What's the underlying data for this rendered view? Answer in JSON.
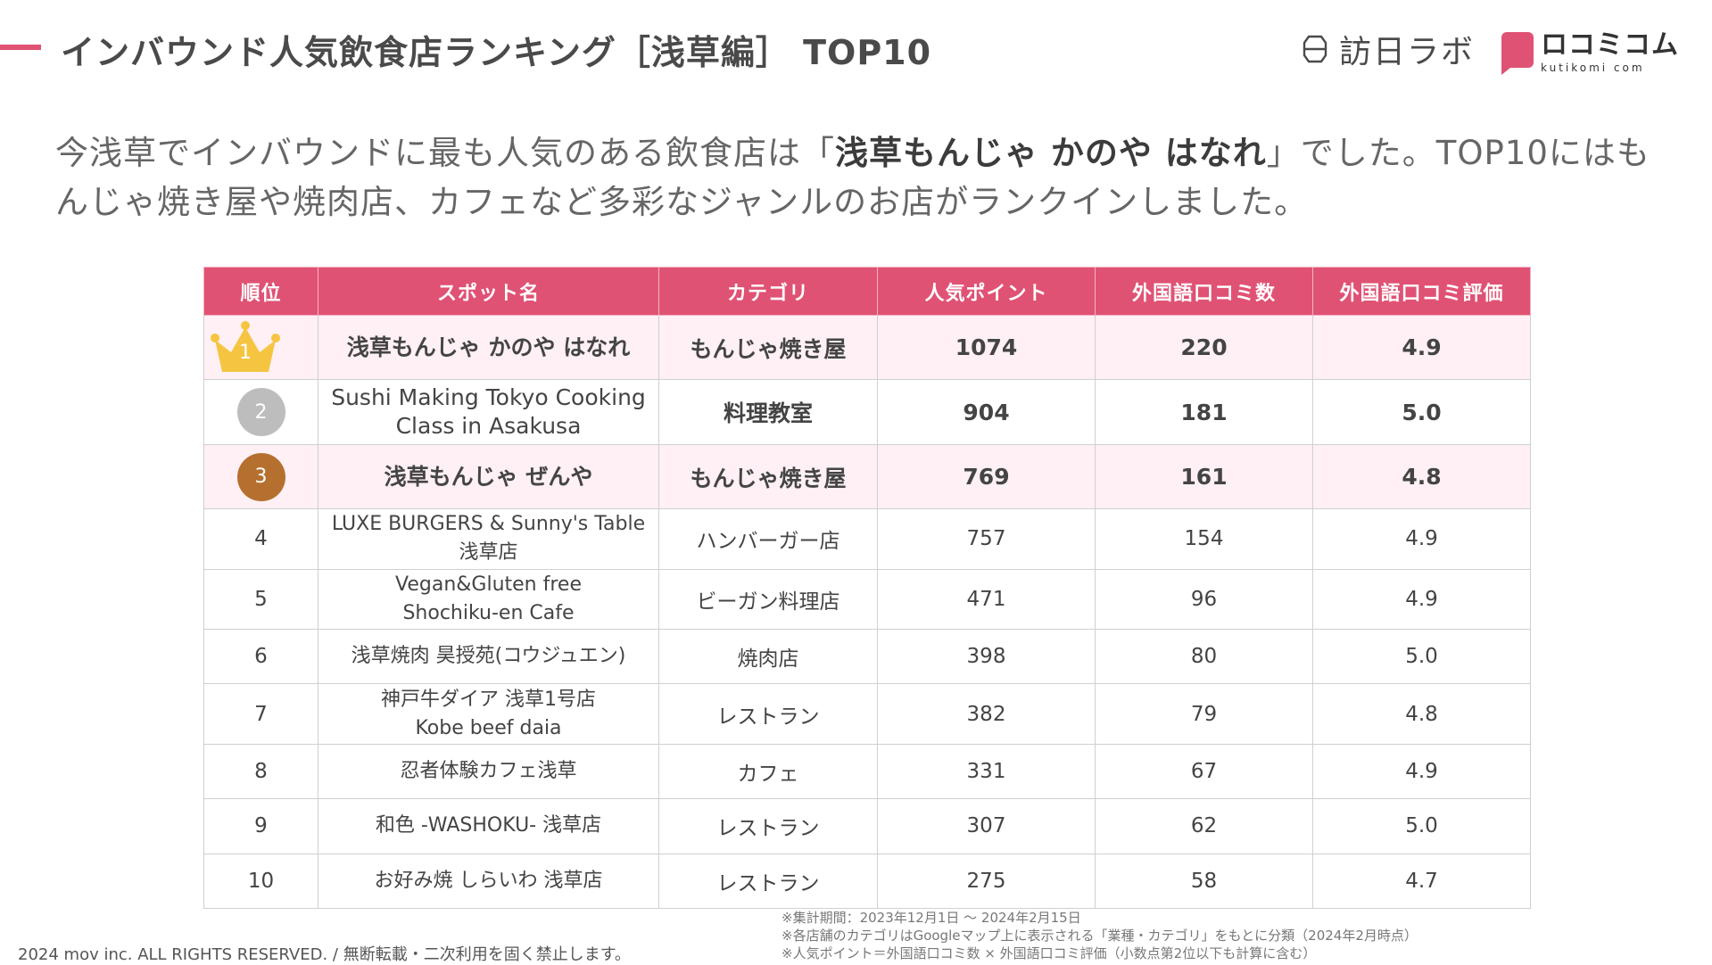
{
  "header": {
    "title": "インバウンド人気飲食店ランキング［浅草編］ TOP10",
    "logo_houni": "訪日ラボ",
    "logo_kuchikomi": "ロコミコム",
    "logo_kuchikomi_en": "kutikomi com"
  },
  "intro": {
    "before": "今浅草でインバウンドに最も人気のある飲食店は「",
    "highlight": "浅草もんじゃ かのや はなれ",
    "after": "」でした。TOP10にはもんじゃ焼き屋や焼肉店、カフェなど多彩なジャンルのお店がランクインしました。"
  },
  "table": {
    "headers": {
      "rank": "順位",
      "spot": "スポット名",
      "category": "カテゴリ",
      "points": "人気ポイント",
      "reviews": "外国語口コミ数",
      "rating": "外国語口コミ評価"
    },
    "rows": [
      {
        "rank": "1",
        "name_l1": "浅草もんじゃ かのや はなれ",
        "name_l2": "",
        "category": "もんじゃ焼き屋",
        "points": "1074",
        "reviews": "220",
        "rating": "4.9"
      },
      {
        "rank": "2",
        "name_l1": "Sushi Making Tokyo Cooking",
        "name_l2": "Class in Asakusa",
        "category": "料理教室",
        "points": "904",
        "reviews": "181",
        "rating": "5.0"
      },
      {
        "rank": "3",
        "name_l1": "浅草もんじゃ ぜんや",
        "name_l2": "",
        "category": "もんじゃ焼き屋",
        "points": "769",
        "reviews": "161",
        "rating": "4.8"
      },
      {
        "rank": "4",
        "name_l1": "LUXE BURGERS & Sunny's Table",
        "name_l2": "浅草店",
        "category": "ハンバーガー店",
        "points": "757",
        "reviews": "154",
        "rating": "4.9"
      },
      {
        "rank": "5",
        "name_l1": "Vegan&Gluten free",
        "name_l2": "Shochiku-en Cafe",
        "category": "ビーガン料理店",
        "points": "471",
        "reviews": "96",
        "rating": "4.9"
      },
      {
        "rank": "6",
        "name_l1": "浅草焼肉 昊授苑(コウジュエン)",
        "name_l2": "",
        "category": "焼肉店",
        "points": "398",
        "reviews": "80",
        "rating": "5.0"
      },
      {
        "rank": "7",
        "name_l1": "神戸牛ダイア 浅草1号店",
        "name_l2": "Kobe beef daia",
        "category": "レストラン",
        "points": "382",
        "reviews": "79",
        "rating": "4.8"
      },
      {
        "rank": "8",
        "name_l1": "忍者体験カフェ浅草",
        "name_l2": "",
        "category": "カフェ",
        "points": "331",
        "reviews": "67",
        "rating": "4.9"
      },
      {
        "rank": "9",
        "name_l1": "和色 -WASHOKU- 浅草店",
        "name_l2": "",
        "category": "レストラン",
        "points": "307",
        "reviews": "62",
        "rating": "5.0"
      },
      {
        "rank": "10",
        "name_l1": "お好み焼 しらいわ 浅草店",
        "name_l2": "",
        "category": "レストラン",
        "points": "275",
        "reviews": "58",
        "rating": "4.7"
      }
    ]
  },
  "footer": {
    "copyright": "2024 mov inc. ALL RIGHTS RESERVED. / 無断転載・二次利用を固く禁止します。",
    "notes": [
      "※集計期間：2023年12月1日 〜 2024年2月15日",
      "※各店舗のカテゴリはGoogleマップ上に表示される「業種・カテゴリ」をもとに分類（2024年2月時点）",
      "※人気ポイント＝外国語口コミ数 × 外国語口コミ評価（小数点第2位以下も計算に含む）"
    ]
  },
  "colors": {
    "accent": "#e05274",
    "highlight_row": "#fef0f4",
    "gold": "#f5c542",
    "silver": "#bdbdbd",
    "bronze": "#b5702f"
  }
}
